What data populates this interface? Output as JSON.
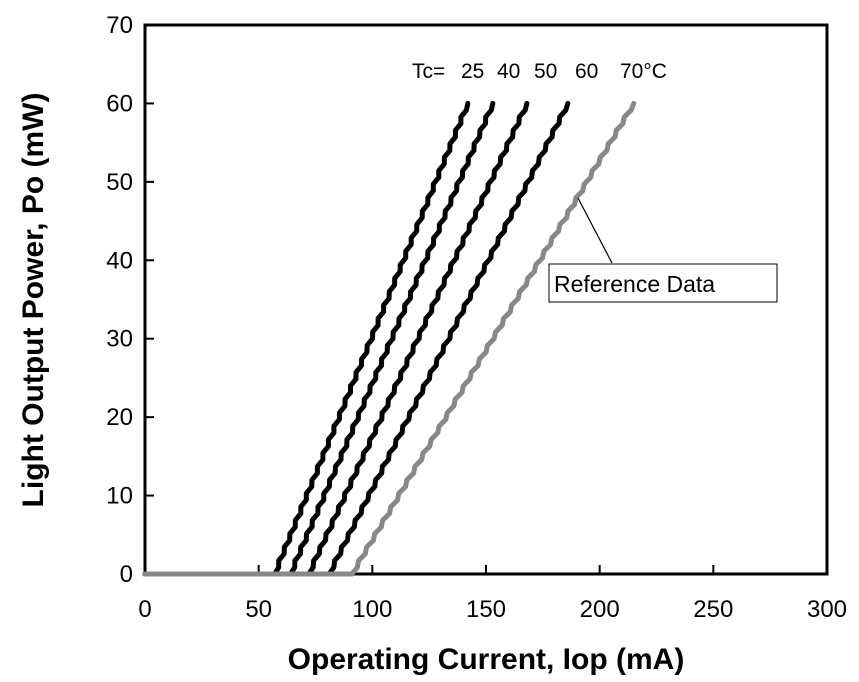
{
  "chart_data": {
    "type": "line",
    "xlabel": "Operating Current, Iop (mA)",
    "ylabel": "Light Output Power, Po (mW)",
    "xlim": [
      0,
      300
    ],
    "ylim": [
      0,
      70
    ],
    "x_ticks": [
      0,
      50,
      100,
      150,
      200,
      250,
      300
    ],
    "y_ticks": [
      0,
      10,
      20,
      30,
      40,
      50,
      60,
      70
    ],
    "grid": false,
    "legend": "none",
    "temperature_prefix": "Tc=",
    "temperature_labels": [
      "25",
      "40",
      "50",
      "60",
      "70°C"
    ],
    "reference_label": "Reference Data",
    "series": [
      {
        "temperature": 25,
        "color": "#000000",
        "points": [
          [
            0,
            0
          ],
          [
            57,
            0
          ],
          [
            142,
            60
          ]
        ]
      },
      {
        "temperature": 40,
        "color": "#000000",
        "points": [
          [
            0,
            0
          ],
          [
            64,
            0
          ],
          [
            153,
            60
          ]
        ]
      },
      {
        "temperature": 50,
        "color": "#000000",
        "points": [
          [
            0,
            0
          ],
          [
            72,
            0
          ],
          [
            168,
            60
          ]
        ]
      },
      {
        "temperature": 60,
        "color": "#000000",
        "points": [
          [
            0,
            0
          ],
          [
            81,
            0
          ],
          [
            186,
            60
          ]
        ]
      },
      {
        "temperature": 70,
        "color": "#888888",
        "points": [
          [
            0,
            0
          ],
          [
            91,
            0
          ],
          [
            215,
            60
          ]
        ]
      }
    ]
  }
}
